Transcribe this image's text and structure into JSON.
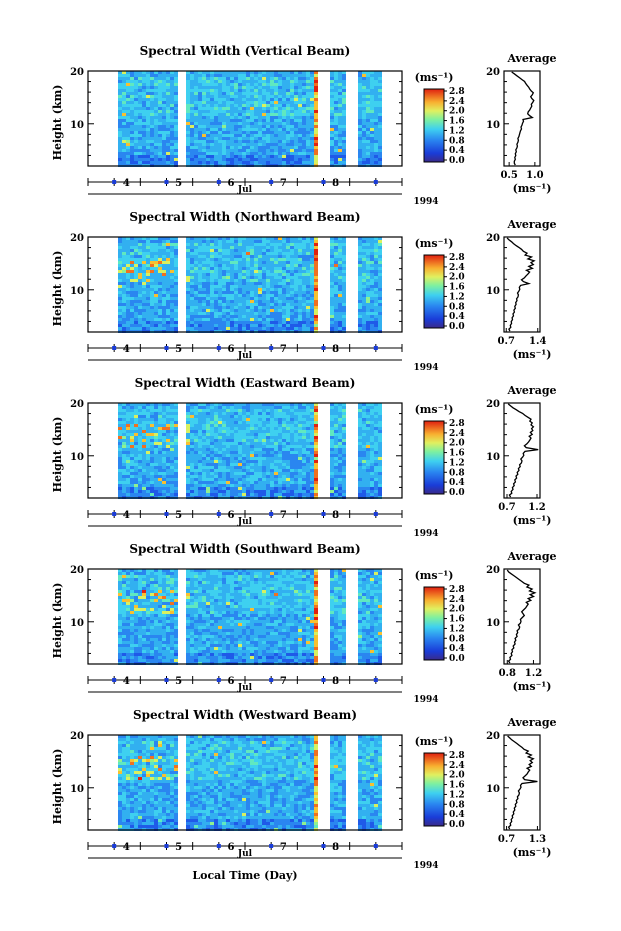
{
  "figure": {
    "xlabel": "Local Time (Day)",
    "month_label": "Jul",
    "year_label": "1994",
    "ylabel": "Height (km)",
    "colorbar_unit": "(ms⁻¹)",
    "colorbar_ticks": [
      "0.0",
      "0.4",
      "0.8",
      "1.2",
      "1.6",
      "2.0",
      "2.4",
      "2.8"
    ],
    "x_ticks": [
      "4",
      "5",
      "6",
      "7",
      "8"
    ],
    "y_ticks": [
      "10",
      "20"
    ],
    "avg_title": "Average",
    "avg_xlabel": "(ms⁻¹)"
  },
  "chart_data": [
    {
      "type": "heatmap",
      "title": "Spectral Width (Vertical Beam)",
      "xlim": [
        3.0,
        9.0
      ],
      "ylim": [
        2,
        20
      ],
      "avg_xticks": [
        "0.5",
        "1.0"
      ],
      "avg_xlim": [
        0.4,
        1.1
      ],
      "avg_profile": [
        0.62,
        0.6,
        0.6,
        0.62,
        0.61,
        0.63,
        0.62,
        0.64,
        0.63,
        0.65,
        0.66,
        0.65,
        0.67,
        0.68,
        0.67,
        0.69,
        0.7,
        0.71,
        0.72,
        0.74,
        0.73,
        0.75,
        0.76,
        0.78,
        0.77,
        0.95,
        0.9,
        0.86,
        0.87,
        0.9,
        0.92,
        0.94,
        0.93,
        0.96,
        0.98,
        0.94,
        0.92,
        0.95,
        0.97,
        0.93,
        0.9,
        0.88,
        0.85,
        0.82,
        0.8,
        0.75,
        0.7,
        0.65,
        0.6,
        0.55
      ]
    },
    {
      "type": "heatmap",
      "title": "Spectral Width (Northward Beam)",
      "xlim": [
        3.0,
        9.0
      ],
      "ylim": [
        2,
        20
      ],
      "avg_xticks": [
        "0.7",
        "1.4"
      ],
      "avg_xlim": [
        0.65,
        1.45
      ],
      "avg_profile": [
        0.78,
        0.76,
        0.8,
        0.79,
        0.82,
        0.81,
        0.84,
        0.83,
        0.86,
        0.85,
        0.88,
        0.87,
        0.9,
        0.89,
        0.92,
        0.91,
        0.94,
        0.93,
        0.96,
        0.97,
        0.95,
        0.98,
        1.0,
        0.99,
        1.02,
        1.2,
        1.08,
        1.04,
        1.1,
        1.14,
        1.18,
        1.22,
        1.15,
        1.28,
        1.2,
        1.3,
        1.25,
        1.32,
        1.18,
        1.26,
        1.12,
        1.16,
        1.08,
        1.04,
        0.98,
        0.92,
        0.86,
        0.82,
        0.76,
        0.72
      ]
    },
    {
      "type": "heatmap",
      "title": "Spectral Width (Eastward Beam)",
      "xlim": [
        3.0,
        9.0
      ],
      "ylim": [
        2,
        20
      ],
      "avg_xticks": [
        "0.7",
        "1.2"
      ],
      "avg_xlim": [
        0.65,
        1.25
      ],
      "avg_profile": [
        0.76,
        0.74,
        0.78,
        0.77,
        0.8,
        0.79,
        0.82,
        0.81,
        0.84,
        0.83,
        0.86,
        0.85,
        0.88,
        0.87,
        0.9,
        0.89,
        0.92,
        0.91,
        0.94,
        0.95,
        0.93,
        0.96,
        0.98,
        0.97,
        1.0,
        1.22,
        1.02,
        0.99,
        1.03,
        1.06,
        1.08,
        1.1,
        1.07,
        1.12,
        1.09,
        1.13,
        1.11,
        1.14,
        1.1,
        1.12,
        1.08,
        1.1,
        1.05,
        1.0,
        0.96,
        0.9,
        0.85,
        0.8,
        0.76,
        0.72
      ]
    },
    {
      "type": "heatmap",
      "title": "Spectral Width (Southward Beam)",
      "xlim": [
        3.0,
        9.0
      ],
      "ylim": [
        2,
        20
      ],
      "avg_xticks": [
        "0.8",
        "1.2"
      ],
      "avg_xlim": [
        0.75,
        1.3
      ],
      "avg_profile": [
        0.84,
        0.82,
        0.85,
        0.84,
        0.87,
        0.86,
        0.88,
        0.87,
        0.9,
        0.89,
        0.92,
        0.91,
        0.93,
        0.92,
        0.95,
        0.94,
        0.96,
        0.95,
        0.98,
        0.99,
        0.97,
        1.0,
        1.01,
        1.0,
        1.03,
        1.06,
        1.04,
        1.02,
        1.05,
        1.08,
        1.1,
        1.12,
        1.09,
        1.16,
        1.12,
        1.2,
        1.15,
        1.22,
        1.14,
        1.18,
        1.1,
        1.13,
        1.06,
        1.02,
        0.98,
        0.94,
        0.9,
        0.86,
        0.82,
        0.8
      ]
    },
    {
      "type": "heatmap",
      "title": "Spectral Width (Westward Beam)",
      "xlim": [
        3.0,
        9.0
      ],
      "ylim": [
        2,
        20
      ],
      "avg_xticks": [
        "0.7",
        "1.3"
      ],
      "avg_xlim": [
        0.65,
        1.35
      ],
      "avg_profile": [
        0.76,
        0.74,
        0.78,
        0.77,
        0.8,
        0.79,
        0.82,
        0.81,
        0.84,
        0.83,
        0.86,
        0.85,
        0.88,
        0.87,
        0.9,
        0.89,
        0.92,
        0.91,
        0.94,
        0.95,
        0.93,
        0.96,
        0.98,
        0.97,
        1.0,
        1.3,
        1.05,
        1.02,
        1.06,
        1.1,
        1.12,
        1.15,
        1.1,
        1.18,
        1.14,
        1.2,
        1.16,
        1.22,
        1.12,
        1.18,
        1.08,
        1.12,
        1.04,
        1.0,
        0.95,
        0.9,
        0.85,
        0.8,
        0.76,
        0.72
      ]
    }
  ]
}
